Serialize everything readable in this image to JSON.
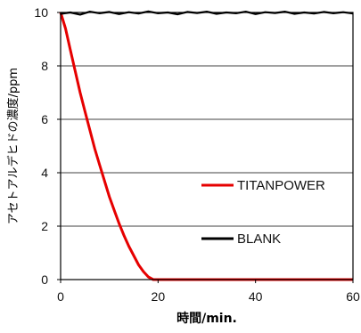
{
  "chart_data": {
    "type": "line",
    "xlabel": "時間/min.",
    "ylabel": "アセトアルデヒドの濃度/ppm",
    "xlim": [
      0,
      60
    ],
    "ylim": [
      0,
      10
    ],
    "xticks": [
      "0",
      "20",
      "40",
      "60"
    ],
    "yticks": [
      "0",
      "2",
      "4",
      "6",
      "8",
      "10"
    ],
    "grid": "horizontal",
    "series": [
      {
        "name": "TITANPOWER",
        "color": "#e60000",
        "x": [
          0,
          1,
          2,
          3,
          4,
          5,
          6,
          7,
          8,
          9,
          10,
          11,
          12,
          13,
          14,
          15,
          16,
          17,
          18,
          19,
          20,
          30,
          40,
          50,
          60
        ],
        "y": [
          10,
          9.4,
          8.6,
          7.8,
          7.0,
          6.3,
          5.6,
          4.9,
          4.3,
          3.7,
          3.1,
          2.6,
          2.1,
          1.65,
          1.25,
          0.9,
          0.55,
          0.3,
          0.1,
          0.0,
          0.0,
          0.0,
          0.0,
          0.0,
          0.0
        ]
      },
      {
        "name": "BLANK",
        "color": "#000000",
        "x": [
          0,
          2,
          4,
          6,
          8,
          10,
          12,
          14,
          16,
          18,
          20,
          22,
          24,
          26,
          28,
          30,
          32,
          34,
          36,
          38,
          40,
          42,
          44,
          46,
          48,
          50,
          52,
          54,
          56,
          58,
          60
        ],
        "y": [
          9.95,
          10.0,
          9.92,
          10.03,
          9.97,
          10.02,
          9.94,
          10.01,
          9.96,
          10.04,
          9.97,
          10.0,
          9.93,
          10.02,
          9.98,
          10.03,
          9.95,
          10.0,
          9.97,
          10.03,
          9.94,
          10.01,
          9.98,
          10.03,
          9.95,
          10.0,
          9.96,
          10.02,
          9.97,
          10.01,
          9.96
        ]
      }
    ],
    "legend": [
      {
        "label": "TITANPOWER",
        "color": "#e60000"
      },
      {
        "label": "BLANK",
        "color": "#000000"
      }
    ],
    "legend_position": "right"
  }
}
